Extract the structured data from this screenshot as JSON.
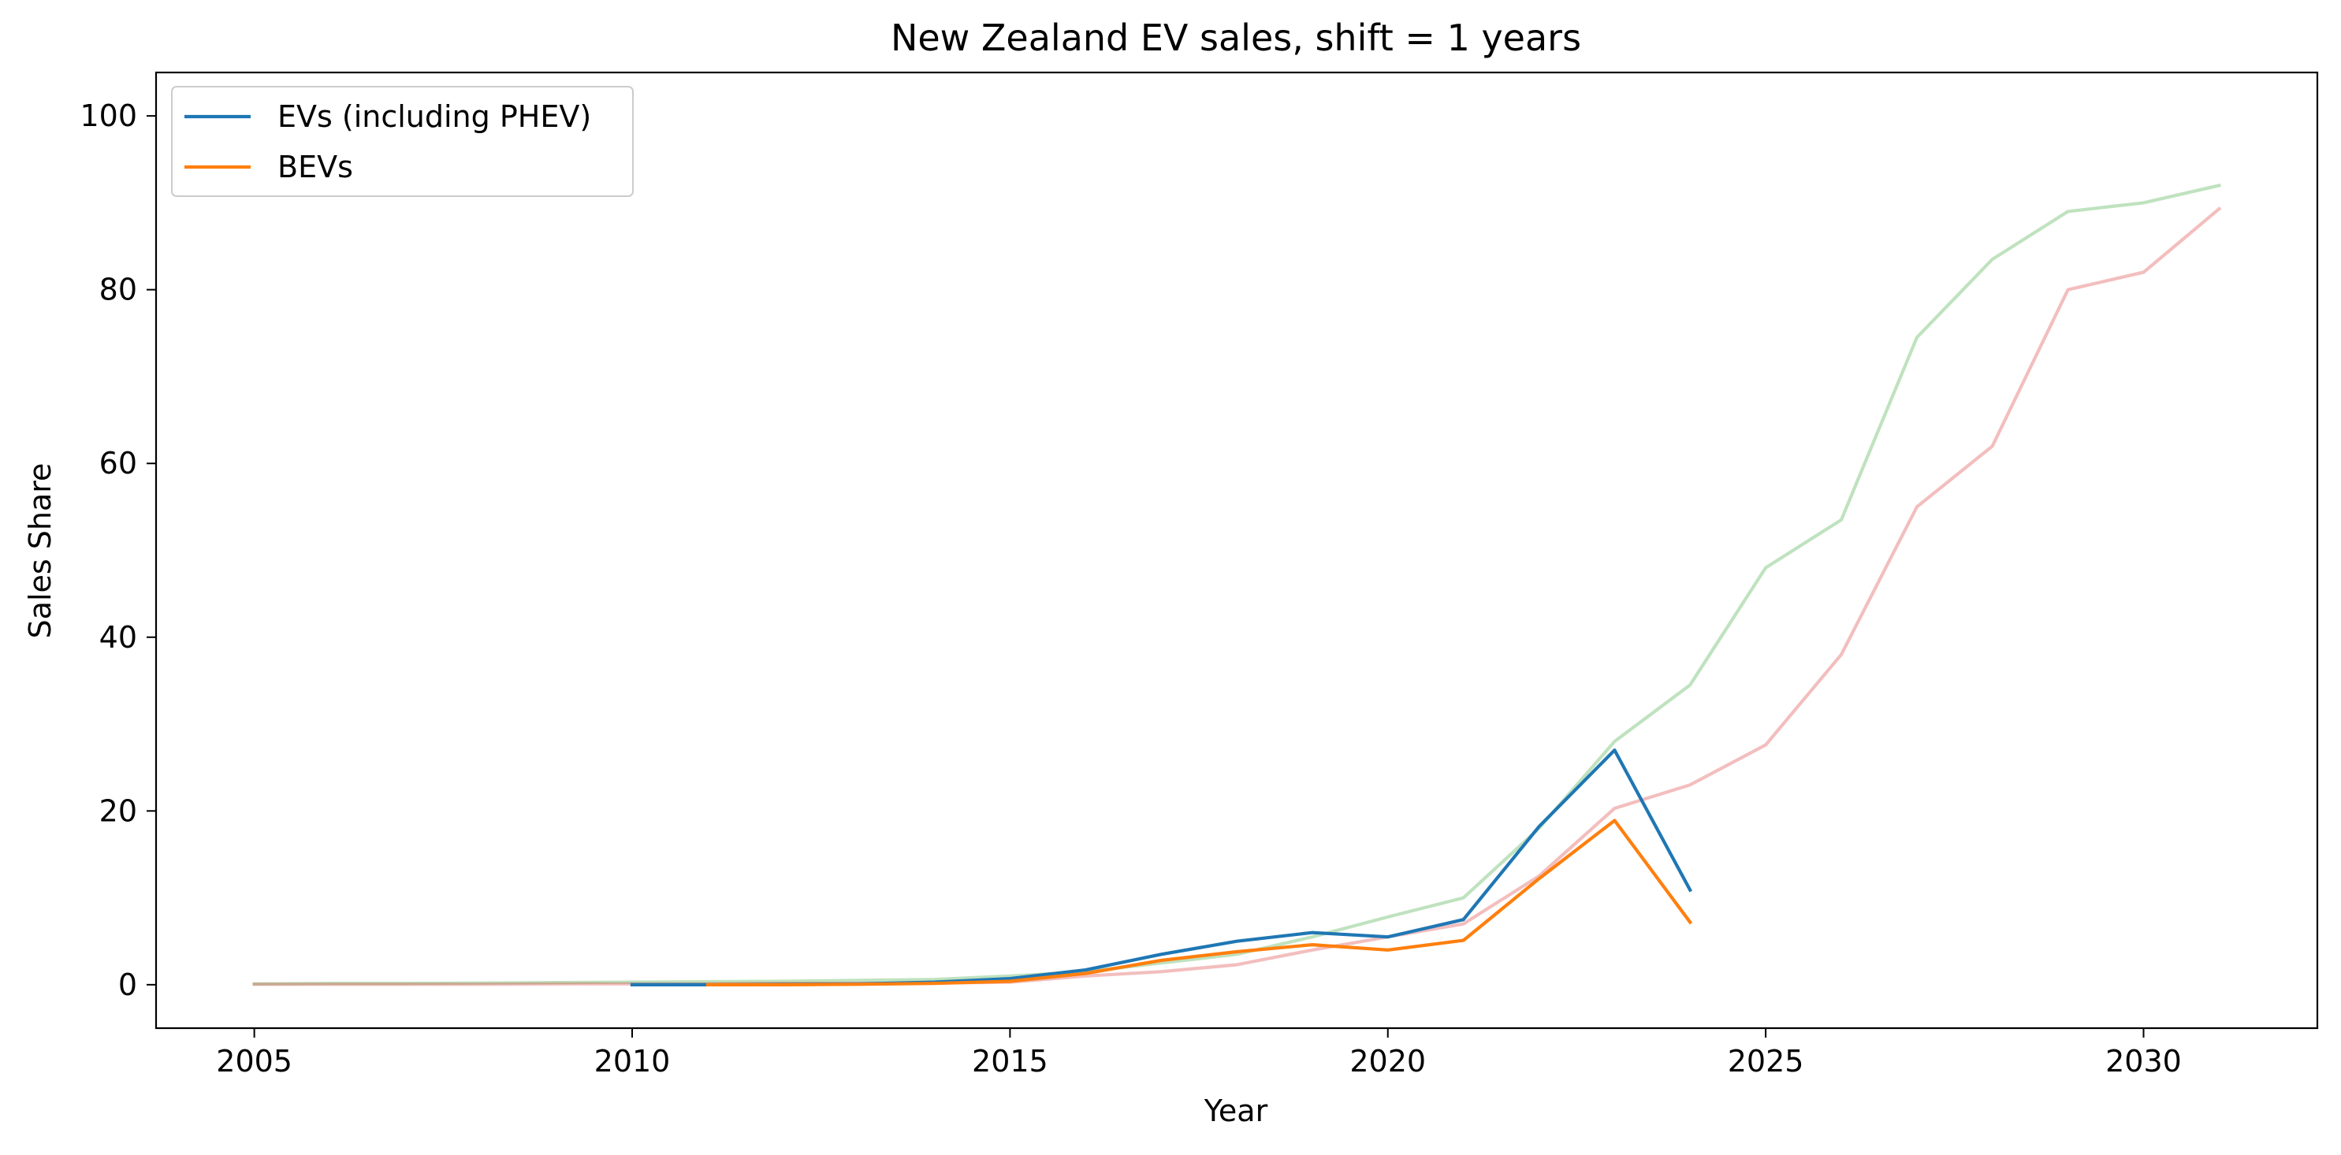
{
  "chart_data": {
    "type": "line",
    "title": "New Zealand EV sales, shift = 1 years",
    "xlabel": "Year",
    "ylabel": "Sales Share",
    "xlim": [
      2003.7,
      2032.3
    ],
    "ylim": [
      -5,
      105
    ],
    "xticks": [
      2005,
      2010,
      2015,
      2020,
      2025,
      2030
    ],
    "yticks": [
      0,
      20,
      40,
      60,
      80,
      100
    ],
    "grid": false,
    "legend_position": "upper-left",
    "series": [
      {
        "color": "#2ca02c",
        "opacity": 0.3,
        "x": [
          2005,
          2006,
          2007,
          2008,
          2009,
          2010,
          2011,
          2012,
          2013,
          2014,
          2015,
          2016,
          2017,
          2018,
          2019,
          2020,
          2021,
          2022,
          2023,
          2024,
          2025,
          2026,
          2027,
          2028,
          2029,
          2030,
          2031
        ],
        "values": [
          0.1,
          0.15,
          0.15,
          0.2,
          0.25,
          0.3,
          0.35,
          0.4,
          0.5,
          0.6,
          1.0,
          1.5,
          2.5,
          3.5,
          5.5,
          7.8,
          10,
          18,
          28,
          34.5,
          48,
          53.5,
          74.5,
          83.5,
          89,
          90,
          92
        ]
      },
      {
        "color": "#d62728",
        "opacity": 0.3,
        "x": [
          2005,
          2006,
          2007,
          2008,
          2009,
          2010,
          2011,
          2012,
          2013,
          2014,
          2015,
          2016,
          2017,
          2018,
          2019,
          2020,
          2021,
          2022,
          2023,
          2024,
          2025,
          2026,
          2027,
          2028,
          2029,
          2030,
          2031
        ],
        "values": [
          0.05,
          0.05,
          0.05,
          0.05,
          0.1,
          0.1,
          0.1,
          0.15,
          0.15,
          0.2,
          0.3,
          1.0,
          1.5,
          2.3,
          4.0,
          5.5,
          7.0,
          12.5,
          20.3,
          23,
          27.6,
          38,
          55,
          62,
          80,
          82,
          89.3
        ]
      },
      {
        "name": "EVs (including PHEV)",
        "color": "#1f77b4",
        "opacity": 1,
        "x": [
          2010,
          2011,
          2012,
          2013,
          2014,
          2015,
          2016,
          2017,
          2018,
          2019,
          2020,
          2021,
          2022,
          2023,
          2024
        ],
        "values": [
          0.0,
          0.0,
          0.05,
          0.1,
          0.3,
          0.7,
          1.7,
          3.5,
          5.0,
          6.0,
          5.5,
          7.5,
          18.2,
          27.0,
          10.9
        ]
      },
      {
        "name": "BEVs",
        "color": "#ff7f0e",
        "opacity": 1,
        "x": [
          2011,
          2012,
          2013,
          2014,
          2015,
          2016,
          2017,
          2018,
          2019,
          2020,
          2021,
          2022,
          2023,
          2024
        ],
        "values": [
          0.0,
          0.0,
          0.05,
          0.15,
          0.4,
          1.3,
          2.8,
          3.8,
          4.6,
          4.0,
          5.1,
          12.2,
          18.9,
          7.2
        ]
      }
    ]
  }
}
